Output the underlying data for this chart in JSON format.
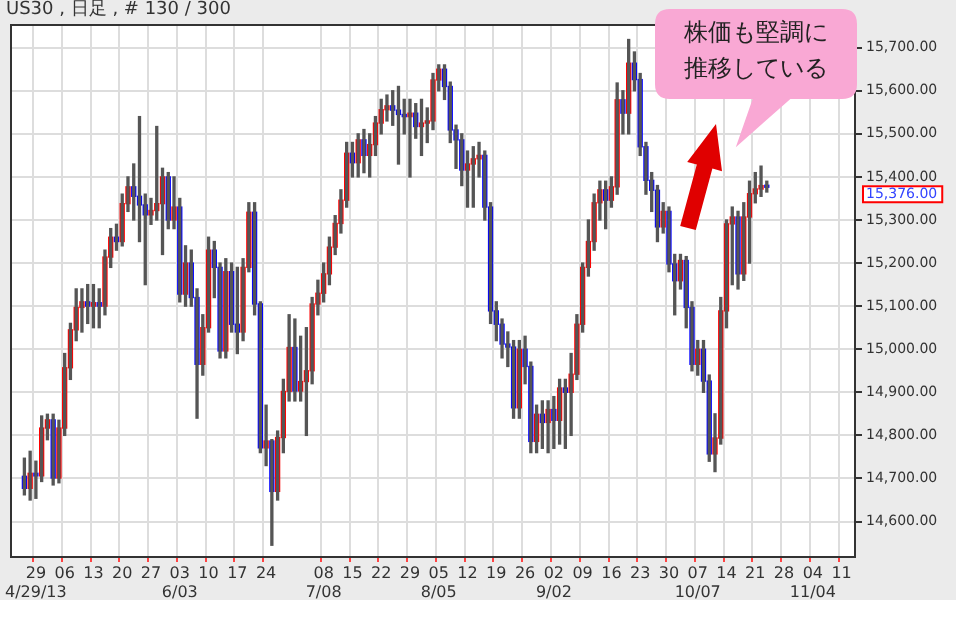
{
  "chart_data": {
    "type": "candlestick",
    "title": "US30 , 日足 , # 130 / 300",
    "categories": [
      null,
      null,
      null,
      null,
      "29\n4/29/13",
      null,
      null,
      null,
      null,
      "06",
      null,
      null,
      null,
      null,
      "13",
      null,
      null,
      null,
      null,
      "20",
      null,
      null,
      null,
      null,
      "27",
      null,
      null,
      null,
      null,
      "03\n6/03",
      null,
      null,
      null,
      null,
      "10",
      null,
      null,
      null,
      null,
      "17",
      null,
      null,
      null,
      null,
      "24",
      null,
      null,
      null,
      null,
      null,
      null,
      null,
      null,
      null,
      "08\n7/08",
      null,
      null,
      null,
      null,
      "15",
      null,
      null,
      null,
      null,
      "22",
      null,
      null,
      null,
      null,
      "29",
      null,
      null,
      null,
      null,
      "05\n8/05",
      null,
      null,
      null,
      null,
      "12",
      null,
      null,
      null,
      null,
      "19",
      null,
      null,
      null,
      null,
      "26",
      null,
      null,
      null,
      null,
      "02\n9/02",
      null,
      null,
      null,
      null,
      "09",
      null,
      null,
      null,
      null,
      "16",
      null,
      null,
      null,
      null,
      "23",
      null,
      null,
      null,
      null,
      "30",
      null,
      null,
      null,
      null,
      "07\n10/07",
      null,
      null,
      null,
      null,
      "14",
      null,
      null,
      null,
      null,
      "21",
      null,
      null,
      null,
      null,
      "28",
      null,
      null,
      null,
      null,
      "04\n11/04",
      null,
      null,
      null,
      null,
      "11",
      null,
      null
    ],
    "ohlc": [
      null,
      null,
      [
        14705,
        14747,
        14662,
        14677
      ],
      [
        14677,
        14763,
        14650,
        14712
      ],
      [
        14712,
        14740,
        14654,
        14706
      ],
      [
        14706,
        14845,
        14693,
        14817
      ],
      [
        14817,
        14849,
        14790,
        14836
      ],
      [
        14836,
        14849,
        14685,
        14701
      ],
      [
        14701,
        14835,
        14690,
        14817
      ],
      [
        14817,
        14990,
        14800,
        14957
      ],
      [
        14957,
        15060,
        14930,
        15045
      ],
      [
        15045,
        15140,
        15020,
        15097
      ],
      [
        15097,
        15140,
        15040,
        15110
      ],
      [
        15110,
        15150,
        15060,
        15100
      ],
      [
        15100,
        15150,
        15050,
        15108
      ],
      [
        15108,
        15140,
        15050,
        15100
      ],
      [
        15100,
        15230,
        15080,
        15214
      ],
      [
        15214,
        15280,
        15190,
        15260
      ],
      [
        15260,
        15290,
        15230,
        15250
      ],
      [
        15250,
        15360,
        15240,
        15338
      ],
      [
        15338,
        15400,
        15320,
        15377
      ],
      [
        15377,
        15430,
        15300,
        15355
      ],
      [
        15355,
        15540,
        15250,
        15335
      ],
      [
        15335,
        15360,
        15150,
        15312
      ],
      [
        15312,
        15350,
        15290,
        15322
      ],
      [
        15322,
        15517,
        15300,
        15338
      ],
      [
        15338,
        15420,
        15220,
        15400
      ],
      [
        15400,
        15410,
        15280,
        15300
      ],
      [
        15300,
        15400,
        15280,
        15330
      ],
      [
        15330,
        15350,
        15110,
        15128
      ],
      [
        15128,
        15240,
        15100,
        15200
      ],
      [
        15200,
        15230,
        15100,
        15120
      ],
      [
        15120,
        15140,
        14840,
        14965
      ],
      [
        14965,
        15080,
        14940,
        15050
      ],
      [
        15050,
        15260,
        15040,
        15230
      ],
      [
        15230,
        15250,
        15120,
        15190
      ],
      [
        15190,
        15200,
        14980,
        14996
      ],
      [
        14996,
        15210,
        14980,
        15180
      ],
      [
        15180,
        15200,
        15040,
        15058
      ],
      [
        15058,
        15190,
        14990,
        15040
      ],
      [
        15040,
        15210,
        15020,
        15190
      ],
      [
        15190,
        15340,
        15180,
        15318
      ],
      [
        15318,
        15340,
        15080,
        15105
      ],
      [
        15105,
        15110,
        14760,
        14771
      ],
      [
        14771,
        14870,
        14730,
        14787
      ],
      [
        14787,
        14790,
        14545,
        14670
      ],
      [
        14670,
        14810,
        14650,
        14795
      ],
      [
        14795,
        14930,
        14760,
        14902
      ],
      [
        14902,
        15080,
        14880,
        15004
      ],
      [
        15004,
        15070,
        14880,
        14903
      ],
      [
        14903,
        15030,
        14880,
        14925
      ],
      [
        14925,
        15050,
        14800,
        14950
      ],
      [
        14950,
        15120,
        14920,
        15105
      ],
      [
        15105,
        15160,
        15080,
        15130
      ],
      [
        15130,
        15200,
        15110,
        15175
      ],
      [
        15175,
        15260,
        15150,
        15237
      ],
      [
        15237,
        15310,
        15220,
        15292
      ],
      [
        15292,
        15370,
        15270,
        15346
      ],
      [
        15346,
        15480,
        15330,
        15455
      ],
      [
        15455,
        15480,
        15400,
        15433
      ],
      [
        15433,
        15500,
        15400,
        15486
      ],
      [
        15486,
        15510,
        15410,
        15450
      ],
      [
        15450,
        15500,
        15400,
        15475
      ],
      [
        15475,
        15540,
        15450,
        15525
      ],
      [
        15525,
        15580,
        15500,
        15556
      ],
      [
        15556,
        15590,
        15530,
        15565
      ],
      [
        15565,
        15600,
        15520,
        15555
      ],
      [
        15555,
        15610,
        15430,
        15545
      ],
      [
        15545,
        15580,
        15500,
        15540
      ],
      [
        15540,
        15580,
        15400,
        15548
      ],
      [
        15548,
        15570,
        15490,
        15517
      ],
      [
        15517,
        15580,
        15450,
        15525
      ],
      [
        15525,
        15560,
        15480,
        15530
      ],
      [
        15530,
        15640,
        15510,
        15625
      ],
      [
        15625,
        15660,
        15600,
        15650
      ],
      [
        15650,
        15660,
        15580,
        15610
      ],
      [
        15610,
        15620,
        15480,
        15509
      ],
      [
        15509,
        15520,
        15420,
        15486
      ],
      [
        15486,
        15500,
        15380,
        15416
      ],
      [
        15416,
        15460,
        15330,
        15430
      ],
      [
        15430,
        15470,
        15330,
        15442
      ],
      [
        15442,
        15480,
        15400,
        15450
      ],
      [
        15450,
        15460,
        15300,
        15330
      ],
      [
        15330,
        15340,
        15060,
        15089
      ],
      [
        15089,
        15110,
        15020,
        15058
      ],
      [
        15058,
        15070,
        14980,
        15012
      ],
      [
        15012,
        15040,
        14960,
        15005
      ],
      [
        15005,
        15020,
        14840,
        14864
      ],
      [
        14864,
        15020,
        14840,
        15000
      ],
      [
        15000,
        15030,
        14920,
        14960
      ],
      [
        14960,
        14970,
        14760,
        14786
      ],
      [
        14786,
        14870,
        14760,
        14849
      ],
      [
        14849,
        14880,
        14770,
        14830
      ],
      [
        14830,
        14880,
        14760,
        14860
      ],
      [
        14860,
        14890,
        14770,
        14835
      ],
      [
        14835,
        14930,
        14780,
        14910
      ],
      [
        14910,
        14930,
        14770,
        14900
      ],
      [
        14900,
        14990,
        14800,
        14942
      ],
      [
        14942,
        15080,
        14930,
        15058
      ],
      [
        15058,
        15200,
        15040,
        15190
      ],
      [
        15190,
        15300,
        15170,
        15250
      ],
      [
        15250,
        15360,
        15230,
        15340
      ],
      [
        15340,
        15390,
        15300,
        15370
      ],
      [
        15370,
        15390,
        15280,
        15346
      ],
      [
        15346,
        15400,
        15330,
        15377
      ],
      [
        15377,
        15618,
        15360,
        15579
      ],
      [
        15579,
        15600,
        15500,
        15548
      ],
      [
        15548,
        15719,
        15500,
        15664
      ],
      [
        15664,
        15690,
        15600,
        15626
      ],
      [
        15626,
        15640,
        15450,
        15470
      ],
      [
        15470,
        15480,
        15360,
        15392
      ],
      [
        15392,
        15410,
        15320,
        15369
      ],
      [
        15369,
        15380,
        15250,
        15284
      ],
      [
        15284,
        15340,
        15270,
        15320
      ],
      [
        15320,
        15330,
        15180,
        15198
      ],
      [
        15198,
        15220,
        15080,
        15159
      ],
      [
        15159,
        15220,
        15140,
        15206
      ],
      [
        15206,
        15215,
        15050,
        15097
      ],
      [
        15097,
        15110,
        14950,
        14965
      ],
      [
        14965,
        15020,
        14940,
        15000
      ],
      [
        15000,
        15020,
        14900,
        14926
      ],
      [
        14926,
        14940,
        14740,
        14757
      ],
      [
        14757,
        14850,
        14716,
        14794
      ],
      [
        14794,
        15120,
        14780,
        15089
      ],
      [
        15089,
        15300,
        15050,
        15291
      ],
      [
        15291,
        15330,
        15150,
        15307
      ],
      [
        15307,
        15320,
        15140,
        15175
      ],
      [
        15175,
        15340,
        15160,
        15307
      ],
      [
        15307,
        15390,
        15200,
        15361
      ],
      [
        15361,
        15410,
        15340,
        15372
      ],
      [
        15372,
        15425,
        15355,
        15380
      ],
      [
        15380,
        15390,
        15365,
        15376
      ],
      null,
      null,
      null,
      null,
      null,
      null,
      null,
      null,
      null,
      null,
      null,
      null,
      null,
      null,
      null
    ],
    "colors": [
      null,
      null,
      "#0000ff",
      "#ff0000",
      "#0000ff",
      "#ff0000",
      "#ff0000",
      "#0000ff",
      "#ff0000",
      "#ff0000",
      "#ff0000",
      "#ff0000",
      "#ff0000",
      "#0000ff",
      "#ff0000",
      "#0000ff",
      "#ff0000",
      "#ff0000",
      "#0000ff",
      "#ff0000",
      "#ff0000",
      "#0000ff",
      "#0000ff",
      "#0000ff",
      "#ff0000",
      "#ff0000",
      "#ff0000",
      "#0000ff",
      "#ff0000",
      "#0000ff",
      "#ff0000",
      "#0000ff",
      "#0000ff",
      "#ff0000",
      "#ff0000",
      "#0000ff",
      "#0000ff",
      "#ff0000",
      "#0000ff",
      "#0000ff",
      "#ff0000",
      "#ff0000",
      "#0000ff",
      "#0000ff",
      "#ff0000",
      "#0000ff",
      "#ff0000",
      "#ff0000",
      "#ff0000",
      "#0000ff",
      "#ff0000",
      "#ff0000",
      "#ff0000",
      "#ff0000",
      "#ff0000",
      "#ff0000",
      "#ff0000",
      "#ff0000",
      "#ff0000",
      "#0000ff",
      "#ff0000",
      "#0000ff",
      "#ff0000",
      "#ff0000",
      "#ff0000",
      "#ff0000",
      "#0000ff",
      "#0000ff",
      "#0000ff",
      "#ff0000",
      "#0000ff",
      "#ff0000",
      "#ff0000",
      "#ff0000",
      "#ff0000",
      "#0000ff",
      "#0000ff",
      "#0000ff",
      "#0000ff",
      "#ff0000",
      "#ff0000",
      "#ff0000",
      "#0000ff",
      "#0000ff",
      "#0000ff",
      "#0000ff",
      "#0000ff",
      "#0000ff",
      "#ff0000",
      "#0000ff",
      "#0000ff",
      "#ff0000",
      "#0000ff",
      "#ff0000",
      "#0000ff",
      "#ff0000",
      "#0000ff",
      "#ff0000",
      "#ff0000",
      "#ff0000",
      "#ff0000",
      "#ff0000",
      "#ff0000",
      "#0000ff",
      "#ff0000",
      "#ff0000",
      "#0000ff",
      "#ff0000",
      "#0000ff",
      "#0000ff",
      "#0000ff",
      "#0000ff",
      "#0000ff",
      "#ff0000",
      "#0000ff",
      "#0000ff",
      "#ff0000",
      "#0000ff",
      "#0000ff",
      "#ff0000",
      "#0000ff",
      "#0000ff",
      "#ff0000",
      "#ff0000",
      "#ff0000",
      "#ff0000",
      "#0000ff",
      "#ff0000",
      "#ff0000",
      "#ff0000",
      "#ff0000",
      "#0000ff",
      null,
      null,
      null,
      null,
      null,
      null,
      null,
      null,
      null,
      null,
      null,
      null,
      null,
      null,
      null
    ],
    "ylim": [
      14520,
      15755
    ],
    "yticks": [
      {
        "value": 14600,
        "label": "14,600.00"
      },
      {
        "value": 14700,
        "label": "14,700.00"
      },
      {
        "value": 14800,
        "label": "14,800.00"
      },
      {
        "value": 14900,
        "label": "14,900.00"
      },
      {
        "value": 15000,
        "label": "15,000.00"
      },
      {
        "value": 15100,
        "label": "15,100.00"
      },
      {
        "value": 15200,
        "label": "15,200.00"
      },
      {
        "value": 15300,
        "label": "15,300.00"
      },
      {
        "value": 15400,
        "label": "15,400.00"
      },
      {
        "value": 15500,
        "label": "15,500.00"
      },
      {
        "value": 15600,
        "label": "15,600.00"
      },
      {
        "value": 15700,
        "label": "15,700.00"
      }
    ],
    "grid": true,
    "annotations": [
      "株価も堅調に推移している",
      "15,376.00"
    ]
  }
}
